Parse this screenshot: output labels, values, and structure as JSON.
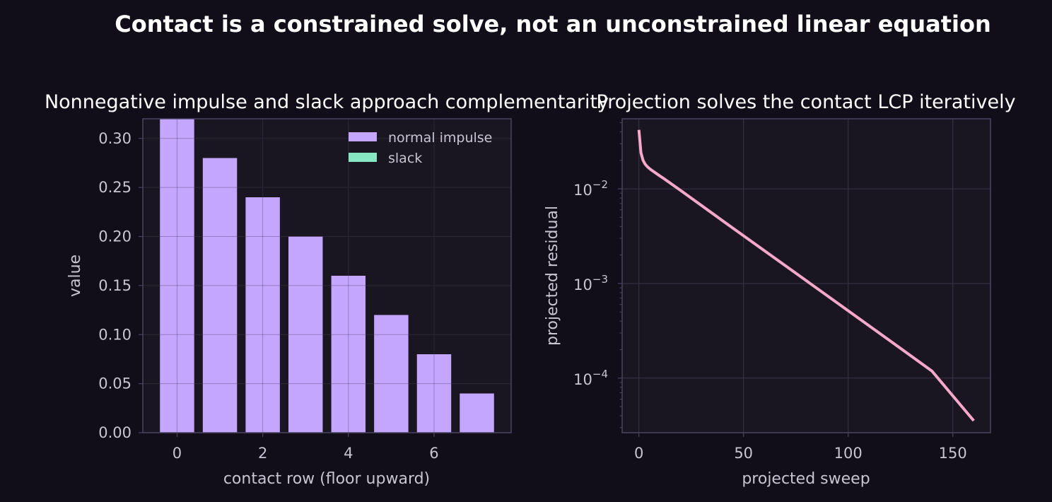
{
  "figure": {
    "suptitle": "Contact is a constrained solve, not an unconstrained linear equation"
  },
  "colors": {
    "background": "#110e19",
    "axes_face": "#191622",
    "axes_edge": "#4a4360",
    "grid": "#3a3448",
    "text": "#ffffff",
    "tick_text": "#c8c4d2",
    "impulse": "#c4a6ff",
    "slack": "#86e6c2",
    "residual": "#f6a8c8"
  },
  "chart_data": [
    {
      "type": "bar",
      "title": "Nonnegative impulse and slack approach complementarity",
      "xlabel": "contact row (floor upward)",
      "ylabel": "value",
      "categories": [
        0,
        1,
        2,
        3,
        4,
        5,
        6,
        7
      ],
      "series": [
        {
          "name": "normal impulse",
          "values": [
            0.32,
            0.28,
            0.24,
            0.2,
            0.16,
            0.12,
            0.08,
            0.04
          ]
        },
        {
          "name": "slack",
          "values": [
            0,
            0,
            0,
            0,
            0,
            0,
            0,
            0
          ]
        }
      ],
      "xticks": [
        "0",
        "2",
        "4",
        "6"
      ],
      "yticks": [
        "0.00",
        "0.05",
        "0.10",
        "0.15",
        "0.20",
        "0.25",
        "0.30"
      ],
      "xlim": [
        -0.8,
        7.8
      ],
      "ylim": [
        0,
        0.32
      ],
      "grid": true,
      "legend": "upper right"
    },
    {
      "type": "line",
      "title": "Projection solves the contact LCP iteratively",
      "xlabel": "projected sweep",
      "ylabel": "projected residual",
      "yscale": "log",
      "series": [
        {
          "x": [
            0,
            1,
            2,
            3,
            4,
            5,
            6,
            8,
            10,
            12,
            20,
            40,
            60,
            80,
            100,
            120,
            140,
            160
          ],
          "y": [
            0.042,
            0.024,
            0.02,
            0.0182,
            0.0172,
            0.0164,
            0.0158,
            0.0147,
            0.0137,
            0.0128,
            0.0096,
            0.0046,
            0.00222,
            0.00107,
            0.000515,
            0.000248,
            0.000119,
            3.55e-05
          ]
        }
      ],
      "xticks": [
        "0",
        "50",
        "100",
        "150"
      ],
      "yticks": [
        {
          "base": "10",
          "exp": "−2",
          "value": 0.01
        },
        {
          "base": "10",
          "exp": "−3",
          "value": 0.001
        },
        {
          "base": "10",
          "exp": "−4",
          "value": 0.0001
        }
      ],
      "xlim": [
        -8,
        168
      ],
      "ylim": [
        2.65e-05,
        0.055
      ],
      "grid": true
    }
  ]
}
